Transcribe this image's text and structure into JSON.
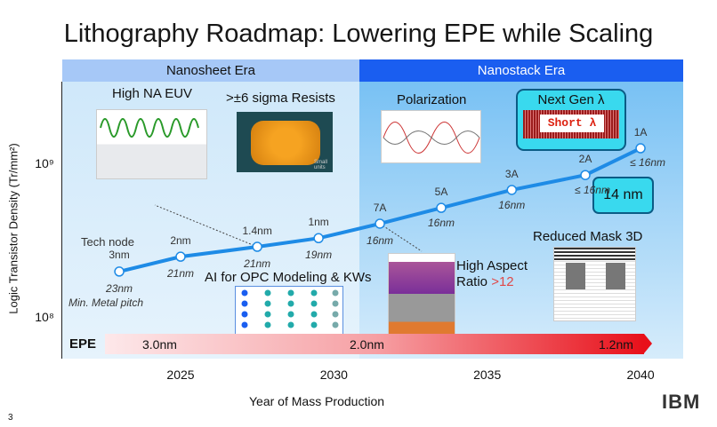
{
  "title": "Lithography Roadmap: Lowering EPE while Scaling",
  "eras": [
    "Nanosheet Era",
    "Nanostack Era"
  ],
  "features": {
    "high_na": "High NA EUV",
    "resists": ">±6 sigma Resists",
    "resist_caption": "Small units",
    "polarization": "Polarization",
    "next_gen": "Next Gen λ",
    "short": "Short λ",
    "nm14": "14 nm",
    "mask3d": "Reduced Mask 3D",
    "ai_opc": "AI for OPC Modeling & KWs",
    "har_1": "High Aspect",
    "har_2": "Ratio",
    "har_val": ">12"
  },
  "tech_node_label": "Tech node",
  "pitch_label": "Min. Metal pitch",
  "epe": {
    "label": "EPE",
    "values": [
      "3.0nm",
      "2.0nm",
      "1.2nm"
    ]
  },
  "slide_number": "3",
  "logo": "IBM",
  "colors": {
    "line": "#1e8be6",
    "era2": "#1a5ef0",
    "epe_red": "#e8101a"
  },
  "chart_data": {
    "type": "line",
    "title": "Lithography Roadmap: Lowering EPE while Scaling",
    "xlabel": "Year of Mass Production",
    "ylabel": "Logic Transistor Density (Tr/mm²)",
    "xticks": [
      "2025",
      "2030",
      "2035",
      "2040"
    ],
    "xlim": [
      2021.1,
      2041.4
    ],
    "yscale": "log",
    "yticks": [
      "10⁸",
      "10⁹"
    ],
    "ylim": [
      110000000.0,
      2500000000.0
    ],
    "series": [
      {
        "name": "Density",
        "points": [
          {
            "x": 2023,
            "y": 200000000.0,
            "node": "3nm",
            "pitch": "23nm"
          },
          {
            "x": 2025,
            "y": 250000000.0,
            "node": "2nm",
            "pitch": "21nm"
          },
          {
            "x": 2027.5,
            "y": 290000000.0,
            "node": "1.4nm",
            "pitch": "21nm"
          },
          {
            "x": 2029.5,
            "y": 330000000.0,
            "node": "1nm",
            "pitch": "19nm"
          },
          {
            "x": 2031.5,
            "y": 410000000.0,
            "node": "7A",
            "pitch": "16nm"
          },
          {
            "x": 2033.5,
            "y": 520000000.0,
            "node": "5A",
            "pitch": "16nm"
          },
          {
            "x": 2035.8,
            "y": 680000000.0,
            "node": "3A",
            "pitch": "16nm"
          },
          {
            "x": 2038.2,
            "y": 850000000.0,
            "node": "2A",
            "pitch": "≤ 16nm"
          },
          {
            "x": 2040,
            "y": 1270000000.0,
            "node": "1A",
            "pitch": "≤ 16nm"
          }
        ]
      }
    ],
    "era_boundary_year": 2030.9
  }
}
